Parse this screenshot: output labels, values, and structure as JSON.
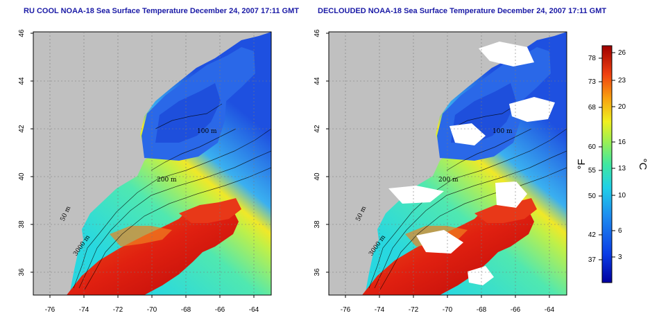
{
  "panels": [
    {
      "title": "RU COOL NOAA-18 Sea Surface Temperature December 24, 2007 17:11 GMT",
      "contour_labels": [
        "100 m",
        "200 m",
        "50 m",
        "3000 m"
      ]
    },
    {
      "title": "DECLOUDED NOAA-18 Sea Surface Temperature December 24, 2007 17:11 GMT",
      "contour_labels": [
        "100 m",
        "200 m",
        "50 m",
        "3000 m"
      ]
    }
  ],
  "axes": {
    "lon_ticks": [
      "-76",
      "-74",
      "-72",
      "-70",
      "-68",
      "-66",
      "-64"
    ],
    "lat_ticks": [
      "46",
      "44",
      "42",
      "40",
      "38",
      "36"
    ]
  },
  "colorbar": {
    "f_ticks": [
      "78",
      "73",
      "68",
      "60",
      "55",
      "50",
      "42",
      "37"
    ],
    "c_ticks": [
      "26",
      "23",
      "20",
      "16",
      "13",
      "10",
      "6",
      "3"
    ],
    "f_unit": "°F",
    "c_unit": "°C"
  },
  "colors": {
    "land": "#c0c0c0",
    "title": "#1a1aa6",
    "warm": "#d21010",
    "cold": "#1f5fe8"
  }
}
